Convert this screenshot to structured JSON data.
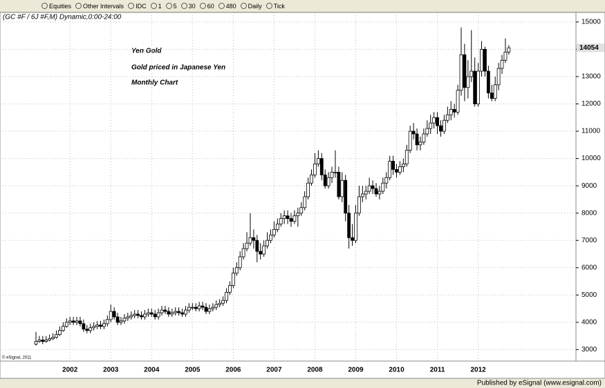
{
  "toolbar": [
    "Equities",
    "Other Intervals",
    "IDC",
    "1",
    "5",
    "30",
    "60",
    "480",
    "Daily",
    "Tick"
  ],
  "chart_data": {
    "type": "candlestick",
    "header": "(GC #F / 6J #F,M) Dynamic,0:00-24:00",
    "annotations": [
      "Yen Gold",
      "Gold priced in Japanese Yen",
      "Monthly Chart"
    ],
    "copyright": "© eSignal, 2011",
    "footer": "Published by eSignal (www.esignal.com)",
    "categories": [
      null,
      null,
      null,
      null,
      null,
      null,
      null,
      null,
      null,
      null,
      "2002",
      null,
      null,
      null,
      null,
      null,
      null,
      null,
      null,
      null,
      null,
      null,
      "2003",
      null,
      null,
      null,
      null,
      null,
      null,
      null,
      null,
      null,
      null,
      null,
      "2004",
      null,
      null,
      null,
      null,
      null,
      null,
      null,
      null,
      null,
      null,
      null,
      "2005",
      null,
      null,
      null,
      null,
      null,
      null,
      null,
      null,
      null,
      null,
      null,
      "2006",
      null,
      null,
      null,
      null,
      null,
      null,
      null,
      null,
      null,
      null,
      null,
      "2007",
      null,
      null,
      null,
      null,
      null,
      null,
      null,
      null,
      null,
      null,
      null,
      "2008",
      null,
      null,
      null,
      null,
      null,
      null,
      null,
      null,
      null,
      null,
      null,
      "2009",
      null,
      null,
      null,
      null,
      null,
      null,
      null,
      null,
      null,
      null,
      null,
      "2010",
      null,
      null,
      null,
      null,
      null,
      null,
      null,
      null,
      null,
      null,
      null,
      "2011",
      null,
      null,
      null,
      null,
      null,
      null,
      null,
      null,
      null,
      null,
      null,
      "2012",
      null,
      null,
      null,
      null,
      null,
      null,
      null,
      null,
      null
    ],
    "open": [
      3200,
      3300,
      3350,
      3300,
      3350,
      3400,
      3450,
      3550,
      3700,
      3850,
      4000,
      4050,
      4000,
      4050,
      3950,
      3750,
      3700,
      3800,
      3850,
      3900,
      3850,
      3950,
      4100,
      4400,
      4200,
      4000,
      4050,
      4150,
      4200,
      4250,
      4300,
      4250,
      4200,
      4300,
      4350,
      4300,
      4200,
      4350,
      4450,
      4400,
      4300,
      4350,
      4400,
      4350,
      4300,
      4450,
      4550,
      4550,
      4500,
      4600,
      4550,
      4400,
      4500,
      4550,
      4650,
      4700,
      4800,
      5100,
      5350,
      5800,
      6000,
      6400,
      6700,
      6900,
      7100,
      7000,
      6600,
      6500,
      6800,
      7000,
      7200,
      7400,
      7600,
      7800,
      7900,
      7800,
      7700,
      7900,
      8000,
      8200,
      8600,
      9100,
      9400,
      9800,
      10000,
      9400,
      9000,
      9300,
      9500,
      9500,
      8600,
      9200,
      8000,
      7100,
      7000,
      8000,
      8600,
      8700,
      8800,
      9000,
      8900,
      8700,
      8800,
      9100,
      9300,
      9900,
      9600,
      9500,
      9700,
      9800,
      10300,
      11000,
      10900,
      10500,
      10600,
      10900,
      11100,
      11300,
      11500,
      11200,
      11000,
      11400,
      11600,
      11800,
      11700,
      12500,
      13800,
      12600,
      13000,
      13200,
      12000,
      13200,
      14000,
      13200,
      12400,
      12200,
      12700,
      13300,
      13600,
      13900
    ],
    "high": [
      3650,
      3500,
      3500,
      3500,
      3550,
      3600,
      3700,
      3850,
      4000,
      4150,
      4200,
      4200,
      4200,
      4200,
      4100,
      3900,
      3950,
      4000,
      4050,
      4050,
      4100,
      4250,
      4650,
      4550,
      4350,
      4200,
      4300,
      4350,
      4400,
      4450,
      4450,
      4400,
      4450,
      4500,
      4500,
      4450,
      4500,
      4600,
      4600,
      4550,
      4500,
      4550,
      4550,
      4500,
      4600,
      4700,
      4700,
      4700,
      4750,
      4750,
      4700,
      4650,
      4700,
      4800,
      4850,
      4950,
      5250,
      5500,
      6000,
      6200,
      6600,
      6900,
      7300,
      8000,
      7400,
      7200,
      6900,
      7000,
      7300,
      7400,
      7700,
      7800,
      8000,
      8100,
      8100,
      8000,
      8100,
      8200,
      8400,
      8800,
      9300,
      9600,
      10200,
      10300,
      10200,
      9600,
      9500,
      9700,
      10300,
      9700,
      9500,
      9400,
      8300,
      7600,
      8300,
      9000,
      9000,
      9000,
      9300,
      9200,
      9100,
      9000,
      9300,
      9500,
      10100,
      10100,
      9800,
      9900,
      10000,
      10500,
      11200,
      11300,
      11100,
      10800,
      11100,
      11400,
      11600,
      11700,
      11700,
      11400,
      11600,
      11900,
      12100,
      12000,
      12700,
      14800,
      14200,
      13600,
      14700,
      13700,
      13500,
      14300,
      14100,
      13400,
      12700,
      13000,
      13500,
      13800,
      14400,
      14150
    ],
    "low": [
      3150,
      3250,
      3200,
      3250,
      3300,
      3350,
      3400,
      3500,
      3650,
      3800,
      3900,
      3900,
      3900,
      3850,
      3650,
      3600,
      3600,
      3700,
      3750,
      3750,
      3750,
      3850,
      4000,
      4100,
      3900,
      3900,
      3950,
      4050,
      4100,
      4150,
      4150,
      4100,
      4100,
      4200,
      4200,
      4100,
      4100,
      4250,
      4300,
      4200,
      4200,
      4250,
      4250,
      4200,
      4200,
      4350,
      4450,
      4400,
      4400,
      4450,
      4300,
      4300,
      4400,
      4450,
      4550,
      4600,
      4700,
      5000,
      5250,
      5700,
      5900,
      6300,
      6600,
      6800,
      6700,
      6200,
      6300,
      6400,
      6700,
      6900,
      7100,
      7300,
      7500,
      7600,
      7600,
      7500,
      7600,
      7500,
      7900,
      8100,
      8500,
      9000,
      9300,
      9700,
      9200,
      8900,
      8900,
      9100,
      9300,
      8500,
      8400,
      7700,
      6700,
      6800,
      6900,
      7900,
      8400,
      8500,
      8700,
      8700,
      8600,
      8500,
      8700,
      8900,
      9200,
      9400,
      9300,
      9400,
      9500,
      9700,
      10200,
      10700,
      10300,
      10300,
      10500,
      10800,
      10900,
      11100,
      10900,
      10800,
      10900,
      11300,
      11400,
      11500,
      11600,
      12300,
      12100,
      12200,
      12800,
      11900,
      11900,
      13000,
      13000,
      12200,
      12100,
      12100,
      12500,
      13100,
      13500,
      13800
    ],
    "close": [
      3300,
      3350,
      3300,
      3350,
      3400,
      3450,
      3550,
      3700,
      3850,
      4000,
      4050,
      4000,
      4050,
      3950,
      3750,
      3700,
      3800,
      3850,
      3900,
      3850,
      3950,
      4100,
      4400,
      4200,
      4000,
      4050,
      4150,
      4200,
      4250,
      4300,
      4250,
      4200,
      4300,
      4350,
      4300,
      4200,
      4350,
      4450,
      4400,
      4300,
      4350,
      4400,
      4350,
      4300,
      4450,
      4550,
      4550,
      4500,
      4600,
      4550,
      4400,
      4500,
      4550,
      4650,
      4700,
      4800,
      5100,
      5350,
      5800,
      6000,
      6400,
      6700,
      6900,
      7100,
      7000,
      6600,
      6500,
      6800,
      7000,
      7200,
      7400,
      7600,
      7800,
      7900,
      7800,
      7700,
      7900,
      8000,
      8200,
      8600,
      9100,
      9400,
      9800,
      10000,
      9400,
      9000,
      9300,
      9500,
      9500,
      8600,
      9200,
      8000,
      7100,
      7000,
      8000,
      8600,
      8700,
      8800,
      9000,
      8900,
      8700,
      8800,
      9100,
      9300,
      9900,
      9600,
      9500,
      9700,
      9800,
      10300,
      11000,
      10900,
      10500,
      10600,
      10900,
      11100,
      11300,
      11500,
      11200,
      11000,
      11400,
      11600,
      11800,
      11700,
      12500,
      13800,
      12600,
      13000,
      13200,
      12000,
      13200,
      14000,
      13200,
      12400,
      12200,
      12700,
      13300,
      13600,
      13900,
      14054
    ],
    "up_color": "#ffffff",
    "down_color": "#000000",
    "ylim": [
      2580,
      15300
    ],
    "yticks": [
      3000,
      4000,
      5000,
      6000,
      7000,
      8000,
      9000,
      10000,
      11000,
      12000,
      13000,
      14000,
      15000
    ],
    "grid": true
  }
}
